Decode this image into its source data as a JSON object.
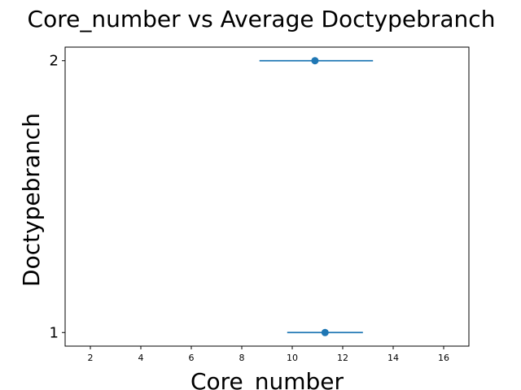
{
  "chart_data": {
    "type": "scatter",
    "title": "Core_number vs Average Doctypebranch",
    "xlabel": "Core_number",
    "ylabel": "Doctypebranch",
    "xlim": [
      1.0,
      17.0
    ],
    "ylim": [
      0.95,
      2.05
    ],
    "xticks": [
      2,
      4,
      6,
      8,
      10,
      12,
      14,
      16
    ],
    "yticks": [
      1,
      2
    ],
    "grid": false,
    "series_color": "#1f77b4",
    "points": [
      {
        "x": 11.3,
        "y": 1,
        "xerr_low": 9.8,
        "xerr_high": 12.8
      },
      {
        "x": 10.9,
        "y": 2,
        "xerr_low": 8.7,
        "xerr_high": 13.2
      }
    ]
  }
}
